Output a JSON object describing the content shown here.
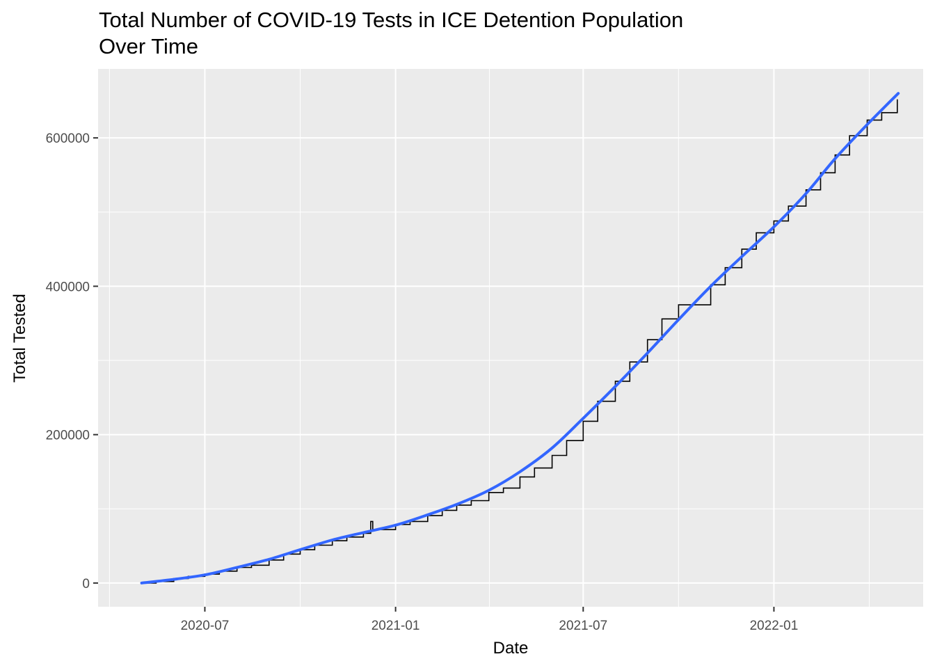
{
  "chart_data": {
    "type": "line",
    "title": "Total Number of COVID-19 Tests in ICE Detention Population\nOver Time",
    "xlabel": "Date",
    "ylabel": "Total Tested",
    "x_ticks": [
      "2020-07",
      "2021-01",
      "2021-07",
      "2022-01"
    ],
    "y_ticks": [
      0,
      200000,
      400000,
      600000
    ],
    "xlim": [
      "2020-03-20",
      "2022-05-25"
    ],
    "ylim": [
      -32000,
      693000
    ],
    "grid": true,
    "legend": "none",
    "colors": {
      "panel": "#ebebeb",
      "grid": "#ffffff",
      "observed": "#000000",
      "trend": "#3366ff"
    },
    "series": [
      {
        "values_observed": [
          [
            "2020-05-01",
            0
          ],
          [
            "2020-05-15",
            2000
          ],
          [
            "2020-06-01",
            6000
          ],
          [
            "2020-06-15",
            9000
          ],
          [
            "2020-07-01",
            12000
          ],
          [
            "2020-07-15",
            16000
          ],
          [
            "2020-08-01",
            21000
          ],
          [
            "2020-08-15",
            24000
          ],
          [
            "2020-09-01",
            31000
          ],
          [
            "2020-09-15",
            39000
          ],
          [
            "2020-10-01",
            45000
          ],
          [
            "2020-10-15",
            51000
          ],
          [
            "2020-11-01",
            57000
          ],
          [
            "2020-11-15",
            62000
          ],
          [
            "2020-12-01",
            67000
          ],
          [
            "2020-12-08",
            83000
          ],
          [
            "2020-12-10",
            72000
          ],
          [
            "2021-01-01",
            79000
          ],
          [
            "2021-01-15",
            83000
          ],
          [
            "2021-02-01",
            91000
          ],
          [
            "2021-02-15",
            98000
          ],
          [
            "2021-03-01",
            105000
          ],
          [
            "2021-03-15",
            111000
          ],
          [
            "2021-04-01",
            122000
          ],
          [
            "2021-04-15",
            128000
          ],
          [
            "2021-05-01",
            143000
          ],
          [
            "2021-05-15",
            155000
          ],
          [
            "2021-06-01",
            172000
          ],
          [
            "2021-06-15",
            192000
          ],
          [
            "2021-07-01",
            218000
          ],
          [
            "2021-07-15",
            245000
          ],
          [
            "2021-08-01",
            272000
          ],
          [
            "2021-08-15",
            298000
          ],
          [
            "2021-09-01",
            328000
          ],
          [
            "2021-09-15",
            356000
          ],
          [
            "2021-10-01",
            375000
          ],
          [
            "2021-10-15",
            375000
          ],
          [
            "2021-11-01",
            402000
          ],
          [
            "2021-11-15",
            425000
          ],
          [
            "2021-12-01",
            450000
          ],
          [
            "2021-12-15",
            472000
          ],
          [
            "2022-01-01",
            488000
          ],
          [
            "2022-01-15",
            508000
          ],
          [
            "2022-02-01",
            530000
          ],
          [
            "2022-02-15",
            553000
          ],
          [
            "2022-03-01",
            577000
          ],
          [
            "2022-03-15",
            603000
          ],
          [
            "2022-04-01",
            624000
          ],
          [
            "2022-04-15",
            634000
          ],
          [
            "2022-04-30",
            652000
          ]
        ],
        "values_trend": [
          [
            "2020-05-01",
            0
          ],
          [
            "2020-06-01",
            5000
          ],
          [
            "2020-07-01",
            11000
          ],
          [
            "2020-08-01",
            21000
          ],
          [
            "2020-09-01",
            32000
          ],
          [
            "2020-10-01",
            45000
          ],
          [
            "2020-11-01",
            58000
          ],
          [
            "2020-12-01",
            68000
          ],
          [
            "2021-01-01",
            78000
          ],
          [
            "2021-02-01",
            92000
          ],
          [
            "2021-03-01",
            106000
          ],
          [
            "2021-04-01",
            125000
          ],
          [
            "2021-05-01",
            150000
          ],
          [
            "2021-06-01",
            182000
          ],
          [
            "2021-07-01",
            222000
          ],
          [
            "2021-08-01",
            265000
          ],
          [
            "2021-09-01",
            310000
          ],
          [
            "2021-10-01",
            355000
          ],
          [
            "2021-11-01",
            400000
          ],
          [
            "2021-12-01",
            440000
          ],
          [
            "2022-01-01",
            480000
          ],
          [
            "2022-02-01",
            525000
          ],
          [
            "2022-03-01",
            572000
          ],
          [
            "2022-04-01",
            618000
          ],
          [
            "2022-05-01",
            660000
          ]
        ]
      }
    ]
  }
}
